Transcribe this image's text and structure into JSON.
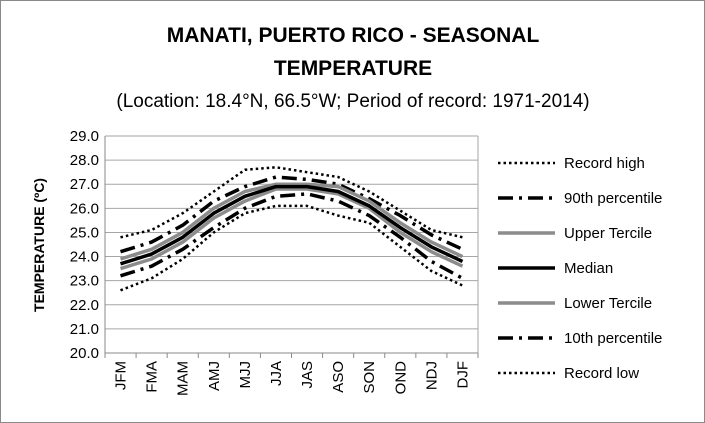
{
  "chart_data": {
    "type": "line",
    "title_line1": "MANATI, PUERTO RICO - SEASONAL",
    "title_line2": "TEMPERATURE",
    "subtitle": "(Location: 18.4°N, 66.5°W; Period of record: 1971-2014)",
    "ylabel": "TEMPERATURE (ºC)",
    "xlabel": "",
    "categories": [
      "JFM",
      "FMA",
      "MAM",
      "AMJ",
      "MJJ",
      "JJA",
      "JAS",
      "ASO",
      "SON",
      "OND",
      "NDJ",
      "DJF"
    ],
    "ylim": [
      20.0,
      29.0
    ],
    "yticks": [
      "20.0",
      "21.0",
      "22.0",
      "23.0",
      "24.0",
      "25.0",
      "26.0",
      "27.0",
      "28.0",
      "29.0"
    ],
    "grid": "horizontal",
    "legend_position": "right",
    "series": [
      {
        "name": "Record high",
        "style": "dotted",
        "color": "#000000",
        "values": [
          24.8,
          25.1,
          25.8,
          26.7,
          27.6,
          27.7,
          27.5,
          27.3,
          26.7,
          25.9,
          25.1,
          24.8
        ]
      },
      {
        "name": "90th percentile",
        "style": "dashdot",
        "color": "#000000",
        "values": [
          24.2,
          24.6,
          25.3,
          26.3,
          26.9,
          27.3,
          27.2,
          27.0,
          26.4,
          25.7,
          24.9,
          24.3
        ]
      },
      {
        "name": "Upper Tercile",
        "style": "solid",
        "color": "#8c8c8c",
        "values": [
          23.9,
          24.3,
          25.0,
          26.0,
          26.7,
          27.0,
          27.0,
          26.9,
          26.3,
          25.4,
          24.6,
          24.0
        ]
      },
      {
        "name": "Median",
        "style": "solid",
        "color": "#000000",
        "values": [
          23.7,
          24.1,
          24.8,
          25.8,
          26.5,
          26.9,
          26.9,
          26.7,
          26.1,
          25.2,
          24.4,
          23.8
        ]
      },
      {
        "name": "Lower Tercile",
        "style": "solid",
        "color": "#8c8c8c",
        "values": [
          23.5,
          23.9,
          24.6,
          25.6,
          26.3,
          26.8,
          26.8,
          26.6,
          26.0,
          25.0,
          24.2,
          23.6
        ]
      },
      {
        "name": "10th percentile",
        "style": "dashdot",
        "color": "#000000",
        "values": [
          23.2,
          23.6,
          24.3,
          25.2,
          26.0,
          26.5,
          26.6,
          26.3,
          25.7,
          24.8,
          23.8,
          23.1
        ]
      },
      {
        "name": "Record low",
        "style": "dotted",
        "color": "#000000",
        "values": [
          22.6,
          23.1,
          23.9,
          25.0,
          25.8,
          26.1,
          26.1,
          25.7,
          25.4,
          24.4,
          23.4,
          22.8
        ]
      }
    ]
  }
}
